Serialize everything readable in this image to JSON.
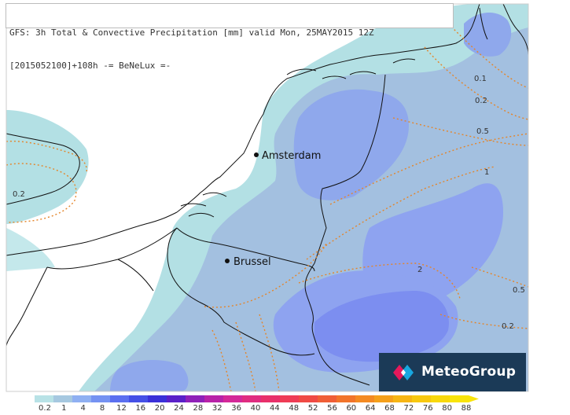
{
  "header": {
    "line1": "GFS: 3h Total & Convective Precipitation [mm] valid Mon, 25MAY2015 12Z",
    "line2": "[2015052100]+108h -= BeNeLux =-"
  },
  "cities": [
    {
      "name": "Amsterdam"
    },
    {
      "name": "Brussel"
    }
  ],
  "contours": [
    "0.1",
    "0.2",
    "0.5",
    "1",
    "2",
    "0.5",
    "0.2",
    "0.2"
  ],
  "legend": {
    "labels": [
      "0.2",
      "1",
      "4",
      "8",
      "12",
      "16",
      "20",
      "24",
      "28",
      "32",
      "36",
      "40",
      "44",
      "48",
      "52",
      "56",
      "60",
      "64",
      "68",
      "72",
      "76",
      "80",
      "88"
    ],
    "colors": [
      "#b8e2e6",
      "#a6c8e0",
      "#8fb0f2",
      "#7592f2",
      "#5b6ff0",
      "#4550e6",
      "#3a30d8",
      "#5a20c8",
      "#8f20b8",
      "#b822a8",
      "#d42898",
      "#e02c80",
      "#e8306a",
      "#ef3c55",
      "#f04a44",
      "#f05e36",
      "#f2742a",
      "#f48a22",
      "#f5a01a",
      "#f6b514",
      "#f7c810",
      "#f8d80c",
      "#f9e40a"
    ]
  },
  "brand": {
    "name": "MeteoGroup"
  }
}
